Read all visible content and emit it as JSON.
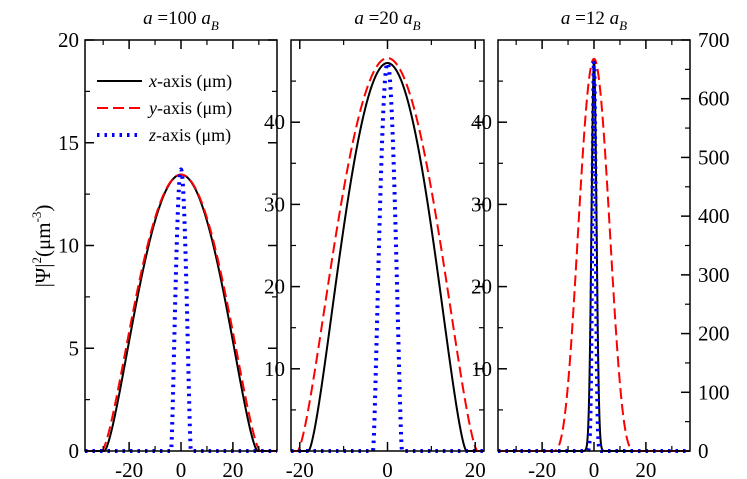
{
  "chart_data": [
    {
      "type": "line",
      "title": "a =100 a_B",
      "title_parts": {
        "var": "a",
        "eq": " =100 ",
        "unit": "a",
        "sub": "B"
      },
      "ylabel": "|Ψ|²(μm⁻³)",
      "xlim": [
        -37,
        37
      ],
      "ylim": [
        0,
        20
      ],
      "x_ticks": [
        -20,
        0,
        20
      ],
      "y_ticks": [
        0,
        5,
        10,
        15,
        20
      ],
      "y_axis_side": "left",
      "legend": {
        "position": "top-left",
        "entries": [
          {
            "var": "x",
            "text": "-axis (μm)",
            "style": "solid",
            "color": "#000000"
          },
          {
            "var": "y",
            "text": "-axis (μm)",
            "style": "dashed",
            "color": "#ff0000"
          },
          {
            "var": "z",
            "text": "-axis (μm)",
            "style": "dotted",
            "color": "#0000ff"
          }
        ]
      },
      "series": [
        {
          "name": "x-axis (μm)",
          "style": "solid",
          "color": "#000000",
          "peak": 13.45,
          "width": 29.5,
          "shape": "tf"
        },
        {
          "name": "y-axis (μm)",
          "style": "dashed",
          "color": "#ff0000",
          "peak": 13.45,
          "width": 30.5,
          "shape": "tf"
        },
        {
          "name": "z-axis (μm)",
          "style": "dotted",
          "color": "#0000ff",
          "peak": 13.7,
          "width": 3.8,
          "shape": "tf"
        }
      ]
    },
    {
      "type": "line",
      "title": "a =20 a_B",
      "title_parts": {
        "var": "a",
        "eq": " =20 ",
        "unit": "a",
        "sub": "B"
      },
      "xlim": [
        -22,
        22
      ],
      "ylim": [
        0,
        50
      ],
      "x_ticks": [
        -20,
        0,
        20
      ],
      "y_ticks": [
        10,
        20,
        30,
        40
      ],
      "y_axis_side": "left",
      "series": [
        {
          "name": "x-axis (μm)",
          "style": "solid",
          "color": "#000000",
          "peak": 47.2,
          "width": 18.0,
          "shape": "tf"
        },
        {
          "name": "y-axis (μm)",
          "style": "dashed",
          "color": "#ff0000",
          "peak": 47.8,
          "width": 20.5,
          "shape": "tf"
        },
        {
          "name": "z-axis (μm)",
          "style": "dotted",
          "color": "#0000ff",
          "peak": 47.2,
          "width": 3.3,
          "shape": "tf"
        }
      ]
    },
    {
      "type": "line",
      "title": "a =12 a_B",
      "title_parts": {
        "var": "a",
        "eq": " =12 ",
        "unit": "a",
        "sub": "B"
      },
      "xlim": [
        -37,
        37
      ],
      "ylim": [
        0,
        50
      ],
      "x_ticks": [
        -20,
        0,
        20
      ],
      "y_ticks": [
        10,
        20,
        30,
        40
      ],
      "y_axis_side": "left",
      "right_axis": {
        "ylim": [
          0,
          700
        ],
        "ticks": [
          0,
          100,
          200,
          300,
          400,
          500,
          600,
          700
        ]
      },
      "series": [
        {
          "name": "x-axis (μm)",
          "style": "solid",
          "color": "#000000",
          "peak": 664,
          "width": 2.4,
          "shape": "gauss",
          "axis": "right"
        },
        {
          "name": "y-axis (μm)",
          "style": "dashed",
          "color": "#ff0000",
          "peak": 668,
          "width": 16.0,
          "shape": "smooth",
          "axis": "right"
        },
        {
          "name": "z-axis (μm)",
          "style": "dotted",
          "color": "#0000ff",
          "peak": 664,
          "width": 1.6,
          "shape": "gauss",
          "axis": "right"
        }
      ]
    }
  ]
}
